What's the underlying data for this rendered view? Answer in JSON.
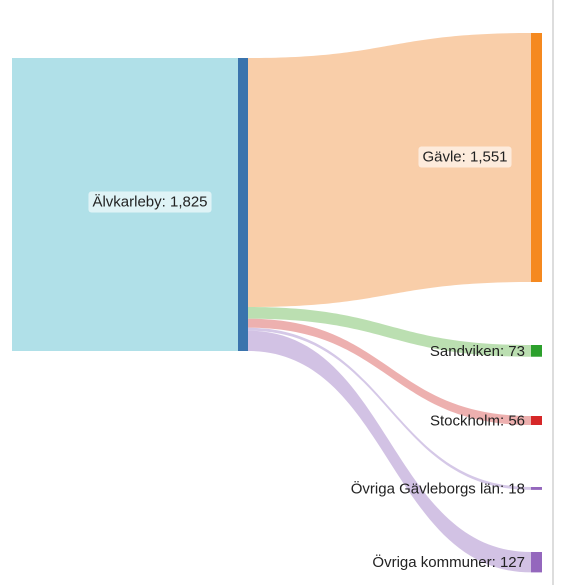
{
  "chart_data": {
    "type": "sankey",
    "source": {
      "label": "Älvkarleby: 1,825",
      "value": 1825,
      "color": "#3a74ad"
    },
    "targets": [
      {
        "label": "Gävle: 1,551",
        "value": 1551,
        "color": "#f5891f",
        "link_color": "#f8c9a0"
      },
      {
        "label": "Sandviken: 73",
        "value": 73,
        "color": "#2ca02c",
        "link_color": "#b4dca9"
      },
      {
        "label": "Stockholm: 56",
        "value": 56,
        "color": "#d62728",
        "link_color": "#eba7a6"
      },
      {
        "label": "Övriga Gävleborgs län: 18",
        "value": 18,
        "color": "#9467bd",
        "link_color": "#d0c2e4"
      },
      {
        "label": "Övriga kommuner: 127",
        "value": 127,
        "color": "#9467bd",
        "link_color": "#cdbbe1"
      }
    ]
  }
}
